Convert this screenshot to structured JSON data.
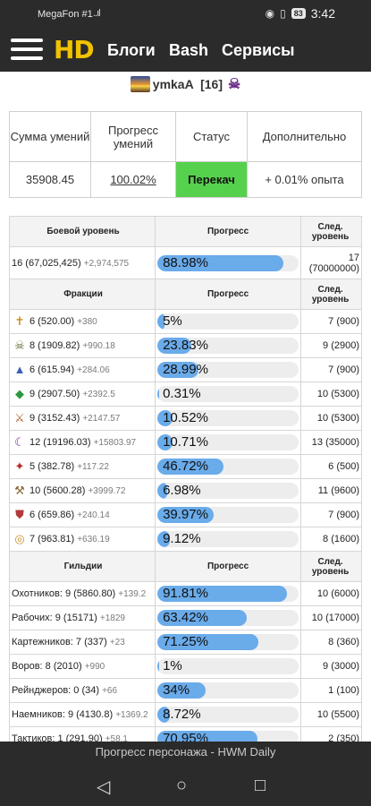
{
  "status_bar": {
    "carrier": "MegaFon #1",
    "signal": "..ıl",
    "battery": "83",
    "time": "3:42",
    "icons": [
      "wifi-icon",
      "eye-icon",
      "vibrate-icon"
    ]
  },
  "nav": {
    "logo": "HD",
    "links": [
      "Блоги",
      "Bash",
      "Сервисы"
    ]
  },
  "player": {
    "name": "ymkaA",
    "level": "[16]"
  },
  "summary": {
    "headers": [
      "Сумма умений",
      "Прогресс умений",
      "Статус",
      "Дополнительно"
    ],
    "values": [
      "35908.45",
      "100.02%",
      "Перекач",
      "+ 0.01% опыта"
    ],
    "status_color": "#56d14d"
  },
  "combat": {
    "headers": [
      "Боевой уровень",
      "Прогресс",
      "След. уровень"
    ],
    "row": {
      "label": "16 (67,025,425)",
      "gain": "+2,974,575",
      "progress_text": "88.98%",
      "progress": 88.98,
      "next_a": "17",
      "next_b": "(70000000)"
    }
  },
  "factions": {
    "headers": [
      "Фракции",
      "Прогресс",
      "След. уровень"
    ],
    "rows": [
      {
        "icon": "cross-icon",
        "label": "6 (520.00)",
        "gain": "+380",
        "progress_text": "5%",
        "progress": 5,
        "next": "7 (900)"
      },
      {
        "icon": "skull-icon",
        "label": "8 (1909.82)",
        "gain": "+990.18",
        "progress_text": "23.83%",
        "progress": 23.83,
        "next": "9 (2900)"
      },
      {
        "icon": "wizard-hat-icon",
        "label": "6 (615.94)",
        "gain": "+284.06",
        "progress_text": "28.99%",
        "progress": 28.99,
        "next": "7 (900)"
      },
      {
        "icon": "green-crystal-icon",
        "label": "9 (2907.50)",
        "gain": "+2392.5",
        "progress_text": "0.31%",
        "progress": 0.31,
        "next": "10 (5300)"
      },
      {
        "icon": "sword-icon",
        "label": "9 (3152.43)",
        "gain": "+2147.57",
        "progress_text": "10.52%",
        "progress": 10.52,
        "next": "10 (5300)"
      },
      {
        "icon": "dark-mask-icon",
        "label": "12 (19196.03)",
        "gain": "+15803.97",
        "progress_text": "10.71%",
        "progress": 10.71,
        "next": "13 (35000)"
      },
      {
        "icon": "demon-icon",
        "label": "5 (382.78)",
        "gain": "+117.22",
        "progress_text": "46.72%",
        "progress": 46.72,
        "next": "6 (500)"
      },
      {
        "icon": "hammer-icon",
        "label": "10 (5600.28)",
        "gain": "+3999.72",
        "progress_text": "6.98%",
        "progress": 6.98,
        "next": "11 (9600)"
      },
      {
        "icon": "shield-icon",
        "label": "6 (659.86)",
        "gain": "+240.14",
        "progress_text": "39.97%",
        "progress": 39.97,
        "next": "7 (900)"
      },
      {
        "icon": "eye-of-horus-icon",
        "label": "7 (963.81)",
        "gain": "+636.19",
        "progress_text": "9.12%",
        "progress": 9.12,
        "next": "8 (1600)"
      }
    ]
  },
  "guilds": {
    "headers": [
      "Гильдии",
      "Прогресс",
      "След. уровень"
    ],
    "rows": [
      {
        "label": "Охотников: 9 (5860.80)",
        "gain": "+139.2",
        "progress_text": "91.81%",
        "progress": 91.81,
        "next": "10 (6000)"
      },
      {
        "label": "Рабочих: 9 (15171)",
        "gain": "+1829",
        "progress_text": "63.42%",
        "progress": 63.42,
        "next": "10 (17000)"
      },
      {
        "label": "Картежников: 7 (337)",
        "gain": "+23",
        "progress_text": "71.25%",
        "progress": 71.25,
        "next": "8 (360)"
      },
      {
        "label": "Воров: 8 (2010)",
        "gain": "+990",
        "progress_text": "1%",
        "progress": 1,
        "next": "9 (3000)"
      },
      {
        "label": "Рейнджеров: 0 (34)",
        "gain": "+66",
        "progress_text": "34%",
        "progress": 34,
        "next": "1 (100)"
      },
      {
        "label": "Наемников: 9 (4130.8)",
        "gain": "+1369.2",
        "progress_text": "8.72%",
        "progress": 8.72,
        "next": "10 (5500)"
      },
      {
        "label": "Тактиков: 1 (291.90)",
        "gain": "+58.1",
        "progress_text": "70.95%",
        "progress": 70.95,
        "next": "2 (350)"
      }
    ]
  },
  "bottom": {
    "title": "Прогресс персонажа - HWM Daily",
    "buttons": [
      "back-icon",
      "home-icon",
      "recents-icon"
    ]
  },
  "colors": {
    "bar": "#6aabea",
    "status_ok": "#56d14d",
    "logo": "#f2c200",
    "chrome": "#2b2b2b"
  }
}
